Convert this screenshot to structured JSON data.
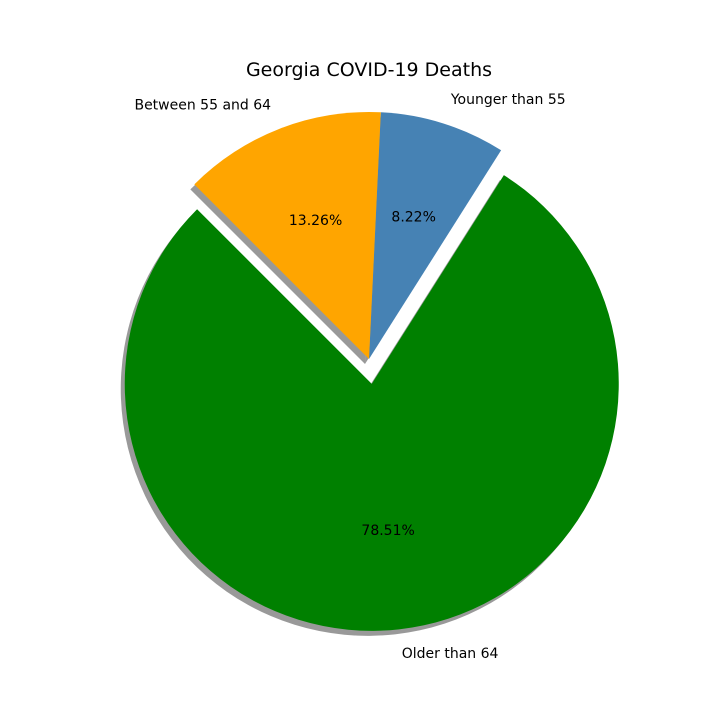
{
  "chart_data": {
    "type": "pie",
    "title": "Georgia COVID-19 Deaths",
    "slices": [
      {
        "label": "Older than 64",
        "value": 78.51,
        "pct_label": "78.51%",
        "color": "#008000",
        "exploded": true
      },
      {
        "label": "Younger than 55",
        "value": 8.22,
        "pct_label": "8.22%",
        "color": "#4682b4",
        "exploded": false
      },
      {
        "label": "Between 55 and 64",
        "value": 13.26,
        "pct_label": "13.26%",
        "color": "#ffa500",
        "exploded": false
      }
    ],
    "shadow": true,
    "legend": "none"
  }
}
